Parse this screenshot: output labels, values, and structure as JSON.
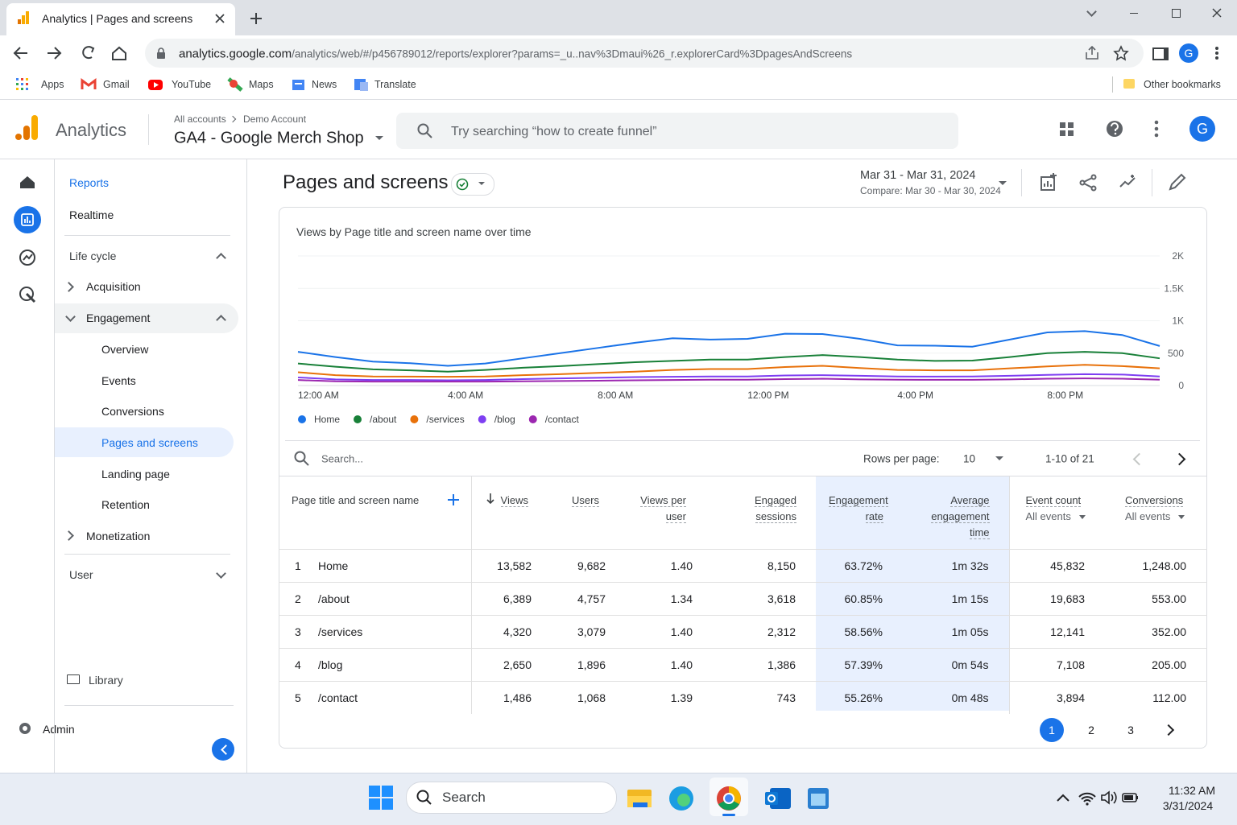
{
  "browser": {
    "tab_title": "Analytics | Pages and screens",
    "url_host": "analytics.google.com",
    "url_path": "/analytics/web/#/p456789012/reports/explorer?params=_u..nav%3Dmaui%26_r.explorerCard%3DpagesAndScreens",
    "profile_initial": "G",
    "bookmarks": [
      "Apps",
      "Gmail",
      "YouTube",
      "Maps",
      "News",
      "Translate"
    ],
    "other_bookmarks": "Other bookmarks"
  },
  "header": {
    "product": "Analytics",
    "breadcrumb": [
      "All accounts",
      "Demo Account"
    ],
    "property": "GA4 - Google Merch Shop",
    "search_placeholder": "Try searching “how to create funnel”",
    "avatar": "G"
  },
  "nav": {
    "reports": "Reports",
    "realtime": "Realtime",
    "life_cycle": "Life cycle",
    "acquisition": "Acquisition",
    "engagement": "Engagement",
    "engagement_items": [
      "Overview",
      "Events",
      "Conversions",
      "Pages and screens",
      "Landing page",
      "Retention"
    ],
    "monetization": "Monetization",
    "user": "User",
    "library": "Library",
    "admin": "Admin"
  },
  "report": {
    "title": "Pages and screens",
    "date_range": "Mar 31 - Mar 31, 2024",
    "compare": "Compare: Mar 30 - Mar 30, 2024"
  },
  "chart_data": {
    "type": "line",
    "title": "Views by Page title and screen name over time",
    "categories": [
      "12:00 AM",
      null,
      null,
      null,
      "4:00 AM",
      null,
      null,
      null,
      "8:00 AM",
      null,
      null,
      null,
      "12:00 PM",
      null,
      null,
      null,
      "4:00 PM",
      null,
      null,
      null,
      "8:00 PM",
      null,
      null,
      null
    ],
    "series": [
      {
        "name": "Home",
        "color": "#1a73e8",
        "values": [
          520,
          440,
          370,
          345,
          305,
          340,
          420,
          500,
          580,
          660,
          730,
          710,
          720,
          800,
          795,
          720,
          620,
          615,
          600,
          710,
          820,
          840,
          780,
          610
        ]
      },
      {
        "name": "/about",
        "color": "#188038",
        "values": [
          340,
          290,
          250,
          235,
          215,
          240,
          275,
          300,
          330,
          360,
          380,
          400,
          400,
          440,
          470,
          440,
          400,
          380,
          385,
          440,
          500,
          520,
          500,
          420
        ]
      },
      {
        "name": "/services",
        "color": "#e8710a",
        "values": [
          205,
          160,
          140,
          138,
          135,
          140,
          160,
          175,
          195,
          215,
          240,
          255,
          255,
          285,
          305,
          270,
          240,
          235,
          235,
          265,
          295,
          320,
          300,
          265
        ]
      },
      {
        "name": "/blog",
        "color": "#7e3ff2",
        "values": [
          125,
          95,
          85,
          85,
          80,
          85,
          100,
          110,
          120,
          130,
          135,
          140,
          140,
          155,
          160,
          150,
          140,
          138,
          140,
          150,
          165,
          175,
          170,
          140
        ]
      },
      {
        "name": "/contact",
        "color": "#9c27b0",
        "values": [
          85,
          65,
          60,
          60,
          60,
          60,
          65,
          70,
          75,
          80,
          85,
          90,
          90,
          100,
          105,
          95,
          90,
          88,
          88,
          95,
          105,
          110,
          105,
          90
        ]
      }
    ],
    "ylim": [
      0,
      2000
    ],
    "yticks": [
      0,
      500,
      {
        "value": 1000,
        "label": "1K"
      },
      {
        "value": 1500,
        "label": "1.5K"
      },
      {
        "value": 2000,
        "label": "2K"
      }
    ],
    "grid": true
  },
  "table": {
    "search_placeholder": "Search...",
    "rows_per_page_label": "Rows per page:",
    "rows_per_page": "10",
    "range": "1-10 of 21",
    "columns": [
      {
        "label": "Page title and screen name"
      },
      {
        "label": "Views"
      },
      {
        "label": "Users"
      },
      {
        "label": "Views per user"
      },
      {
        "label": "Engaged sessions"
      },
      {
        "label": "Engagement rate"
      },
      {
        "label": "Average engagement time"
      },
      {
        "label": "Event count",
        "filter": "All events"
      },
      {
        "label": "Conversions",
        "filter": "All events"
      }
    ],
    "rows": [
      [
        "1",
        "Home",
        "13,582",
        "9,682",
        "1.40",
        "8,150",
        "63.72%",
        "1m 32s",
        "45,832",
        "1,248.00"
      ],
      [
        "2",
        "/about",
        "6,389",
        "4,757",
        "1.34",
        "3,618",
        "60.85%",
        "1m 15s",
        "19,683",
        "553.00"
      ],
      [
        "3",
        "/services",
        "4,320",
        "3,079",
        "1.40",
        "2,312",
        "58.56%",
        "1m 05s",
        "12,141",
        "352.00"
      ],
      [
        "4",
        "/blog",
        "2,650",
        "1,896",
        "1.40",
        "1,386",
        "57.39%",
        "0m 54s",
        "7,108",
        "205.00"
      ],
      [
        "5",
        "/contact",
        "1,486",
        "1,068",
        "1.39",
        "743",
        "55.26%",
        "0m 48s",
        "3,894",
        "112.00"
      ]
    ],
    "pages": [
      "1",
      "2",
      "3"
    ]
  },
  "taskbar": {
    "search": "Search",
    "time": "11:32 AM",
    "date": "3/31/2024"
  }
}
